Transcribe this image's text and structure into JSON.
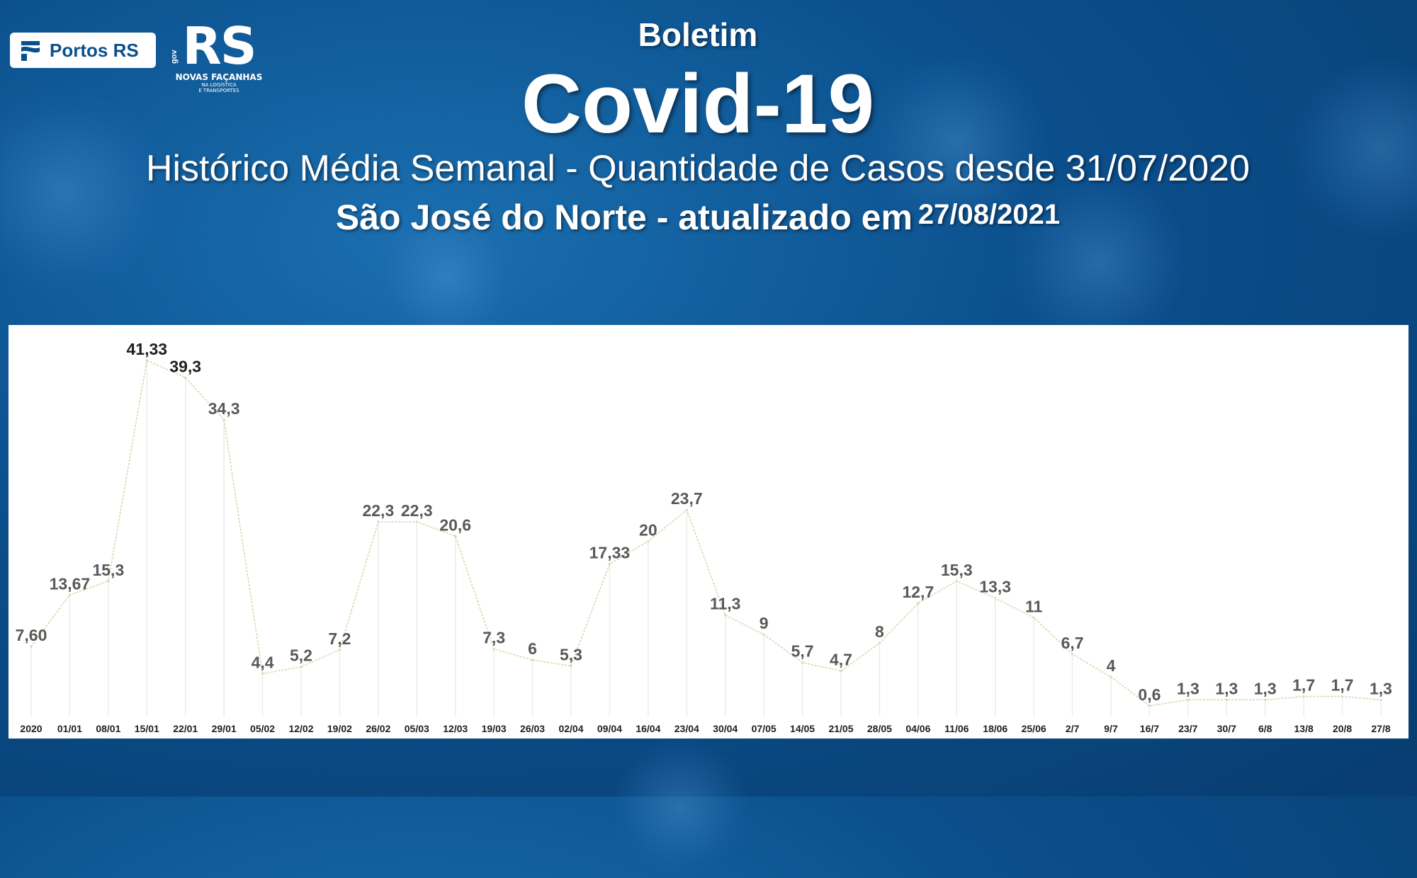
{
  "header": {
    "boletim": "Boletim",
    "title": "Covid-19",
    "subtitle": "Histórico Média Semanal - Quantidade de Casos desde 31/07/2020",
    "location": "São José do Norte - atualizado em",
    "date": "27/08/2021"
  },
  "logos": {
    "portos": "Portos RS",
    "rs_main": "RS",
    "rs_gov": "gov",
    "rs_sub": "NOVAS FAÇANHAS",
    "rs_sub2_line1": "NA LOGÍSTICA",
    "rs_sub2_line2": "E TRANSPORTES"
  },
  "colors": {
    "background": "#0b4f8c",
    "line": "#e0cfa8",
    "dropline": "#ececec",
    "label": "#595959",
    "label_strong": "#1f1f1f"
  },
  "chart_data": {
    "type": "line",
    "title": "",
    "xlabel": "",
    "ylabel": "",
    "ylim": [
      0,
      43
    ],
    "grid": false,
    "categories": [
      "2020",
      "01/01",
      "08/01",
      "15/01",
      "22/01",
      "29/01",
      "05/02",
      "12/02",
      "19/02",
      "26/02",
      "05/03",
      "12/03",
      "19/03",
      "26/03",
      "02/04",
      "09/04",
      "16/04",
      "23/04",
      "30/04",
      "07/05",
      "14/05",
      "21/05",
      "28/05",
      "04/06",
      "11/06",
      "18/06",
      "25/06",
      "2/7",
      "9/7",
      "16/7",
      "23/7",
      "30/7",
      "6/8",
      "13/8",
      "20/8",
      "27/8"
    ],
    "series": [
      {
        "values": [
          7.6,
          13.67,
          15.3,
          41.33,
          39.3,
          34.3,
          4.4,
          5.2,
          7.2,
          22.3,
          22.3,
          20.6,
          7.3,
          6,
          5.3,
          17.33,
          20,
          23.7,
          11.3,
          9,
          5.7,
          4.7,
          8,
          12.7,
          15.3,
          13.3,
          11,
          6.7,
          4,
          0.6,
          1.3,
          1.3,
          1.3,
          1.7,
          1.7,
          1.3
        ],
        "labels": [
          "7,60",
          "13,67",
          "15,3",
          "41,33",
          "39,3",
          "34,3",
          "4,4",
          "5,2",
          "7,2",
          "22,3",
          "22,3",
          "20,6",
          "7,3",
          "6",
          "5,3",
          "17,33",
          "20",
          "23,7",
          "11,3",
          "9",
          "5,7",
          "4,7",
          "8",
          "12,7",
          "15,3",
          "13,3",
          "11",
          "6,7",
          "4",
          "0,6",
          "1,3",
          "1,3",
          "1,3",
          "1,7",
          "1,7",
          "1,3"
        ]
      }
    ]
  }
}
